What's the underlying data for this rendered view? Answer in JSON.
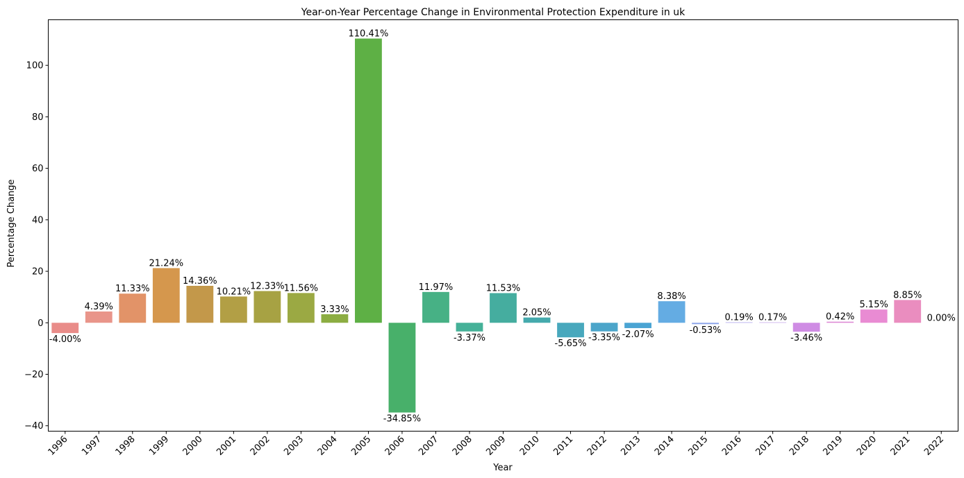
{
  "chart_data": {
    "type": "bar",
    "title": "Year-on-Year Percentage Change in Environmental Protection Expenditure in uk",
    "xlabel": "Year",
    "ylabel": "Percentage Change",
    "ylim": [
      -42.1,
      117.7
    ],
    "yticks": [
      -40,
      -20,
      0,
      20,
      40,
      60,
      80,
      100
    ],
    "ytick_labels": [
      "−40",
      "−20",
      "0",
      "20",
      "40",
      "60",
      "80",
      "100"
    ],
    "grid": false,
    "legend": false,
    "categories": [
      "1996",
      "1997",
      "1998",
      "1999",
      "2000",
      "2001",
      "2002",
      "2003",
      "2004",
      "2005",
      "2006",
      "2007",
      "2008",
      "2009",
      "2010",
      "2011",
      "2012",
      "2013",
      "2014",
      "2015",
      "2016",
      "2017",
      "2018",
      "2019",
      "2020",
      "2021",
      "2022"
    ],
    "values": [
      -4.0,
      4.39,
      11.33,
      21.24,
      14.36,
      10.21,
      12.33,
      11.56,
      3.33,
      110.41,
      -34.85,
      11.97,
      -3.37,
      11.53,
      2.05,
      -5.65,
      -3.35,
      -2.07,
      8.38,
      -0.53,
      0.19,
      0.17,
      -3.46,
      0.42,
      5.15,
      8.85,
      0.0
    ],
    "data_labels": [
      "-4.00%",
      "4.39%",
      "11.33%",
      "21.24%",
      "14.36%",
      "10.21%",
      "12.33%",
      "11.56%",
      "3.33%",
      "110.41%",
      "-34.85%",
      "11.97%",
      "-3.37%",
      "11.53%",
      "2.05%",
      "-5.65%",
      "-3.35%",
      "-2.07%",
      "8.38%",
      "-0.53%",
      "0.19%",
      "0.17%",
      "-3.46%",
      "0.42%",
      "5.15%",
      "8.85%",
      "0.00%"
    ],
    "colors": [
      "#e98c89",
      "#e9958a",
      "#e29368",
      "#d5974d",
      "#c3984a",
      "#b29f45",
      "#a7a243",
      "#9ba943",
      "#8cad42",
      "#5eb045",
      "#48b06a",
      "#47b185",
      "#45b198",
      "#45ad9f",
      "#45aaad",
      "#48a8bd",
      "#4ca5ca",
      "#4aa4d3",
      "#64ace3",
      "#8ca5e9",
      "#a49ae9",
      "#b996e8",
      "#cf8ce4",
      "#dc88d4",
      "#e98bd3",
      "#ea8dbf",
      "#e98ba9"
    ]
  }
}
